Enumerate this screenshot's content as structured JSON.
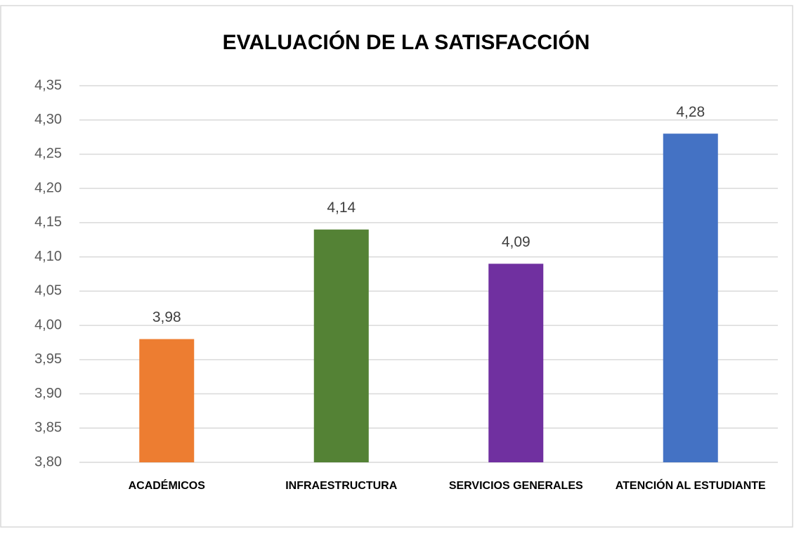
{
  "chart_data": {
    "type": "bar",
    "title": "EVALUACIÓN DE LA SATISFACCIÓN",
    "categories": [
      "ACADÉMICOS",
      "INFRAESTRUCTURA",
      "SERVICIOS GENERALES",
      "ATENCIÓN AL ESTUDIANTE"
    ],
    "values": [
      3.98,
      4.14,
      4.09,
      4.28
    ],
    "value_labels": [
      "3,98",
      "4,14",
      "4,09",
      "4,28"
    ],
    "colors": [
      "#ED7D31",
      "#548235",
      "#7030A0",
      "#4472C4"
    ],
    "ylim": [
      3.8,
      4.35
    ],
    "yticks": [
      {
        "value": 3.8,
        "label": "3,80"
      },
      {
        "value": 3.85,
        "label": "3,85"
      },
      {
        "value": 3.9,
        "label": "3,90"
      },
      {
        "value": 3.95,
        "label": "3,95"
      },
      {
        "value": 4.0,
        "label": "4,00"
      },
      {
        "value": 4.05,
        "label": "4,05"
      },
      {
        "value": 4.1,
        "label": "4,10"
      },
      {
        "value": 4.15,
        "label": "4,15"
      },
      {
        "value": 4.2,
        "label": "4,20"
      },
      {
        "value": 4.25,
        "label": "4,25"
      },
      {
        "value": 4.3,
        "label": "4,30"
      },
      {
        "value": 4.35,
        "label": "4,35"
      }
    ],
    "grid": true
  }
}
